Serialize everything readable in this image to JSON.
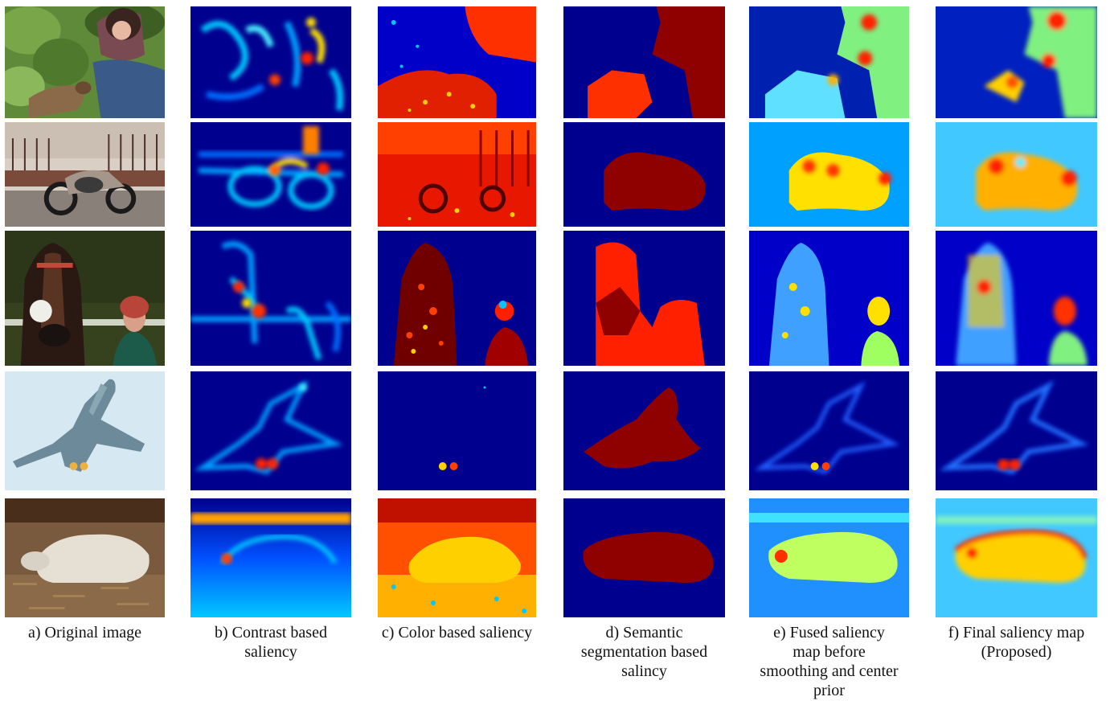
{
  "figure": {
    "columns": [
      {
        "id": "original",
        "caption": "a) Original image"
      },
      {
        "id": "contrast",
        "caption": "b) Contrast based saliency"
      },
      {
        "id": "color",
        "caption": "c) Color based saliency"
      },
      {
        "id": "semantic",
        "caption": "d) Semantic segmentation based salincy"
      },
      {
        "id": "fused",
        "caption": "e)  Fused saliency map before smoothing and center prior"
      },
      {
        "id": "final",
        "caption": "f) Final saliency map (Proposed)"
      }
    ],
    "rows": [
      {
        "subject": "woman-and-cat"
      },
      {
        "subject": "motorcycle"
      },
      {
        "subject": "horse-and-woman"
      },
      {
        "subject": "fighter-jet"
      },
      {
        "subject": "sheep"
      }
    ],
    "colors": {
      "jet_dark_blue": "#00008f",
      "jet_blue": "#0000ff",
      "jet_cyan": "#00c8ff",
      "jet_yellow": "#ffe000",
      "jet_red": "#ff2000",
      "jet_dark_red": "#8f0000"
    }
  }
}
